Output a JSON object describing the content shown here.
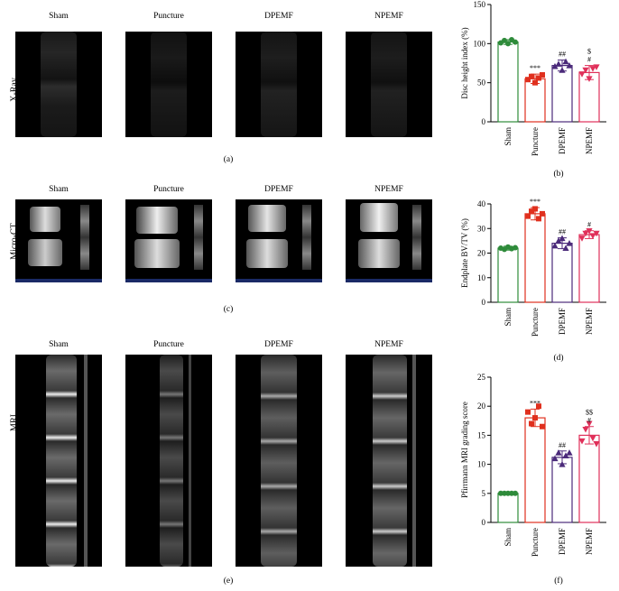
{
  "groups": [
    "Sham",
    "Puncture",
    "DPEMF",
    "NPEMF"
  ],
  "row_labels": {
    "xray": "X-Ray",
    "microct": "Micro-CT",
    "mri": "MRI"
  },
  "captions": {
    "a": "(a)",
    "b": "(b)",
    "c": "(c)",
    "d": "(d)",
    "e": "(e)",
    "f": "(f)"
  },
  "colors": {
    "sham": "#2e8b3a",
    "puncture": "#e0301e",
    "dpemf": "#4b2a7a",
    "npemf": "#e0305a"
  },
  "chart_data": [
    {
      "id": "b",
      "type": "bar",
      "ylabel": "Disc height index (%)",
      "ylim": [
        0,
        150
      ],
      "yticks": [
        0,
        50,
        100,
        150
      ],
      "categories": [
        "Sham",
        "Puncture",
        "DPEMF",
        "NPEMF"
      ],
      "values": [
        102,
        55,
        72,
        63
      ],
      "errors": [
        3,
        6,
        7,
        9
      ],
      "points": [
        [
          101,
          104,
          100,
          105,
          102
        ],
        [
          54,
          58,
          50,
          56,
          60
        ],
        [
          71,
          74,
          66,
          77,
          72
        ],
        [
          61,
          66,
          55,
          68,
          70
        ]
      ],
      "markers": [
        "circle",
        "square",
        "triangle-up",
        "triangle-down"
      ],
      "annotations": [
        [
          ""
        ],
        [
          "***"
        ],
        [
          "##"
        ],
        [
          "$",
          "#"
        ]
      ]
    },
    {
      "id": "d",
      "type": "bar",
      "ylabel": "Endplate BV/TV (%)",
      "ylim": [
        0,
        40
      ],
      "yticks": [
        0,
        10,
        20,
        30,
        40
      ],
      "categories": [
        "Sham",
        "Puncture",
        "DPEMF",
        "NPEMF"
      ],
      "values": [
        22,
        36,
        24,
        27.5
      ],
      "errors": [
        0.8,
        2.5,
        2.2,
        1.6
      ],
      "points": [
        [
          22,
          21.5,
          22.5,
          21.8,
          22.2
        ],
        [
          35,
          37,
          38,
          34,
          36
        ],
        [
          23,
          25,
          26,
          22,
          24
        ],
        [
          26,
          28,
          29,
          27,
          28
        ]
      ],
      "markers": [
        "circle",
        "square",
        "triangle-up",
        "triangle-down"
      ],
      "annotations": [
        [
          ""
        ],
        [
          "***"
        ],
        [
          "##"
        ],
        [
          "#"
        ]
      ]
    },
    {
      "id": "f",
      "type": "bar",
      "ylabel": "Pfirrmann MRI grading score",
      "ylim": [
        0,
        25
      ],
      "yticks": [
        0,
        5,
        10,
        15,
        20,
        25
      ],
      "categories": [
        "Sham",
        "Puncture",
        "DPEMF",
        "NPEMF"
      ],
      "values": [
        5,
        18,
        11.2,
        15
      ],
      "errors": [
        0,
        1.5,
        1.1,
        1.5
      ],
      "points": [
        [
          5,
          5,
          5,
          5,
          5
        ],
        [
          19,
          17,
          18,
          20,
          16.5
        ],
        [
          11,
          12,
          10,
          11.5,
          12
        ],
        [
          14,
          16,
          17,
          14.5,
          13.5
        ]
      ],
      "markers": [
        "circle",
        "square",
        "triangle-up",
        "triangle-down"
      ],
      "annotations": [
        [
          ""
        ],
        [
          "***"
        ],
        [
          "##"
        ],
        [
          "$$",
          "#"
        ]
      ]
    }
  ]
}
